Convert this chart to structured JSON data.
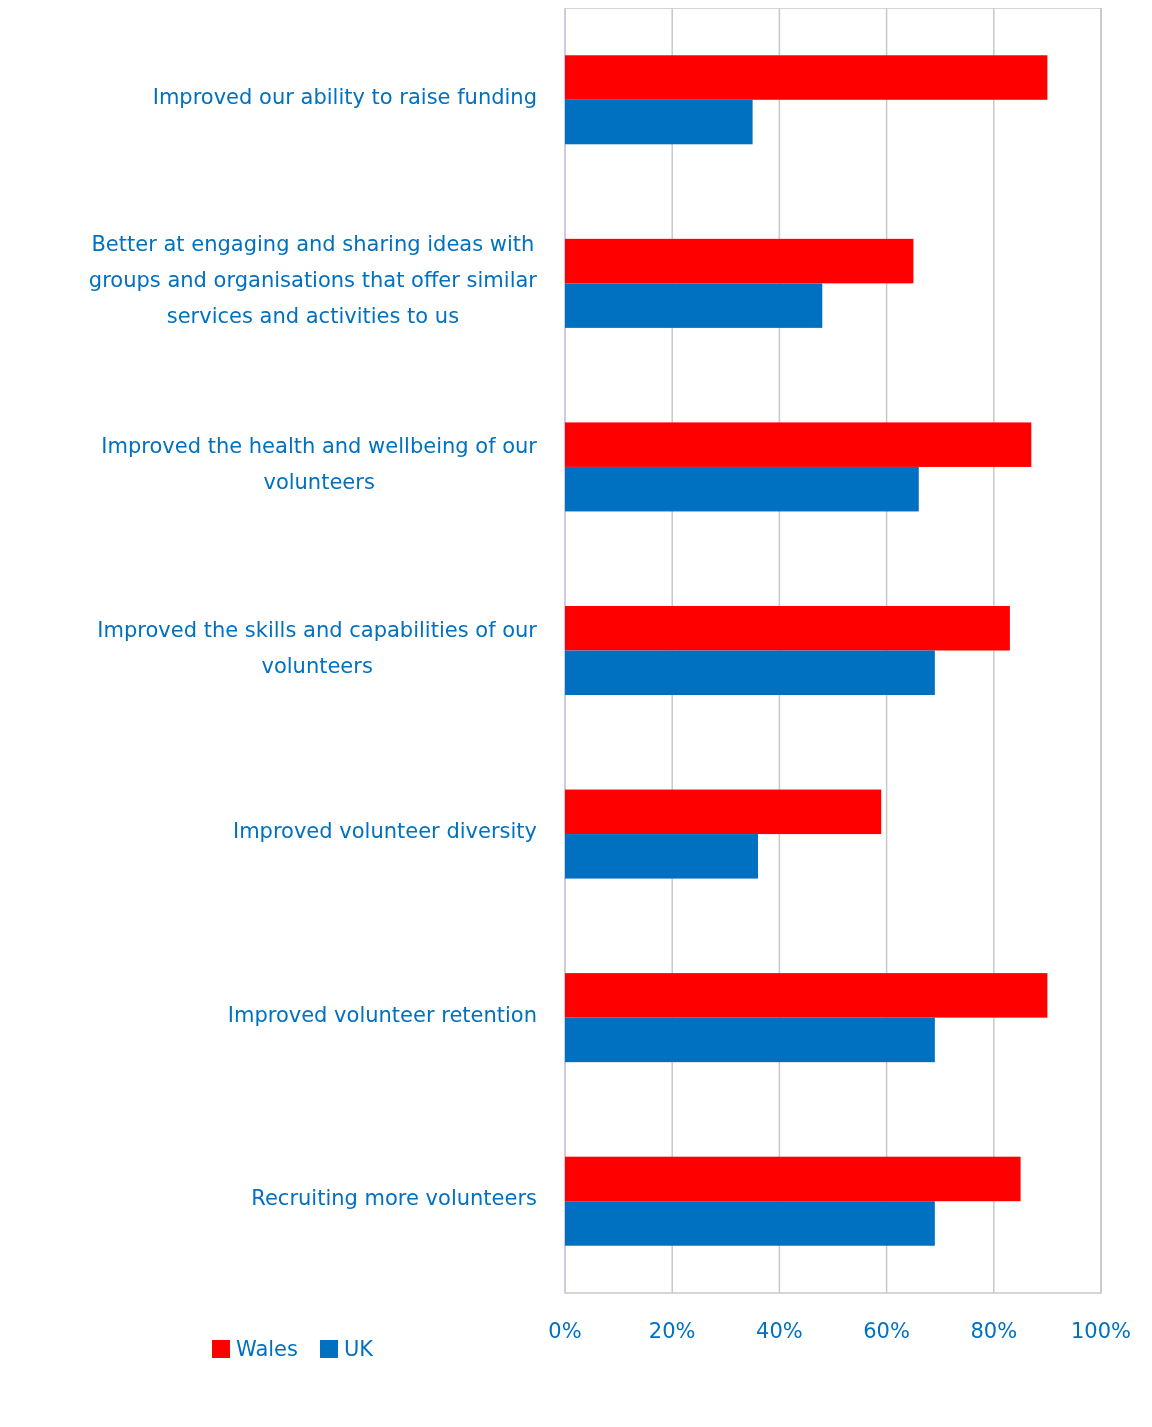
{
  "chart_data": {
    "type": "bar",
    "orientation": "horizontal",
    "categories": [
      "Improved our ability to raise funding",
      "Better at engaging and sharing ideas with groups and organisations that offer similar services and activities to us",
      "Improved the health and wellbeing of our volunteers",
      "Improved the skills and capabilities of our volunteers",
      "Improved volunteer diversity",
      "Improved volunteer retention",
      "Recruiting more volunteers"
    ],
    "series": [
      {
        "name": "Wales",
        "color": "#ff0000",
        "values": [
          90,
          65,
          87,
          83,
          59,
          90,
          85
        ]
      },
      {
        "name": "UK",
        "color": "#0070c0",
        "values": [
          35,
          48,
          66,
          69,
          36,
          69,
          69
        ]
      }
    ],
    "xlim": [
      0,
      100
    ],
    "xticks": [
      {
        "value": 0,
        "label": "0%"
      },
      {
        "value": 20,
        "label": "20%"
      },
      {
        "value": 40,
        "label": "40%"
      },
      {
        "value": 60,
        "label": "60%"
      },
      {
        "value": 80,
        "label": "80%"
      },
      {
        "value": 100,
        "label": "100%"
      }
    ],
    "grid": "x",
    "legend": "bottom left"
  }
}
